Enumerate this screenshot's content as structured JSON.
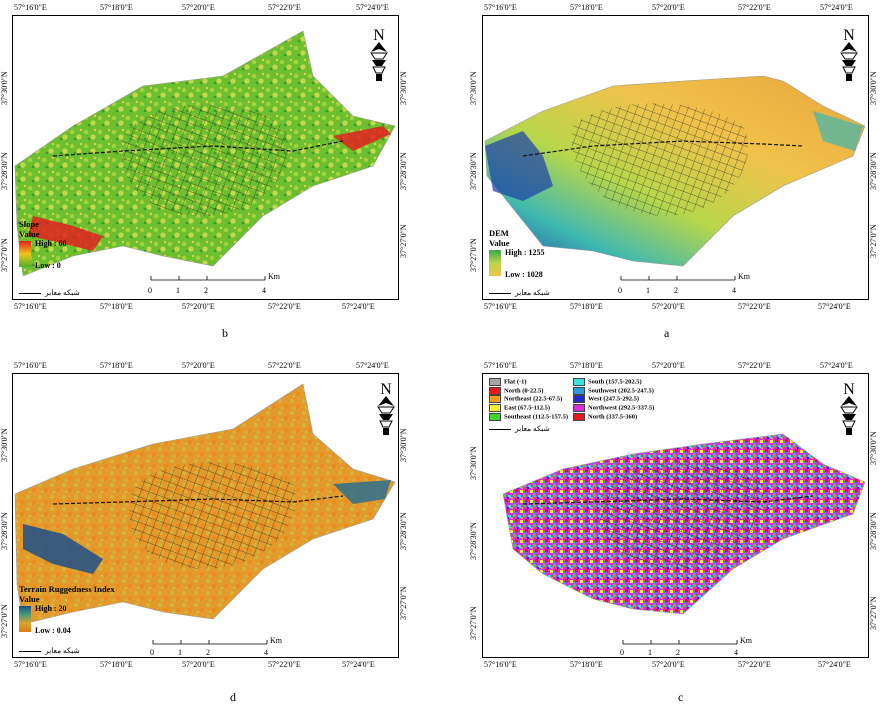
{
  "panels": {
    "b": {
      "letter": "b",
      "top_coords": [
        "57°16'0\"E",
        "57°18'0\"E",
        "57°20'0\"E",
        "57°22'0\"E",
        "57°24'0\"E"
      ],
      "bottom_coords": [
        "57°16'0\"E",
        "57°18'0\"E",
        "57°20'0\"E",
        "57°22'0\"E",
        "57°24'0\"E"
      ],
      "left_coords": [
        "37°30'0\"N",
        "37°28'30\"N",
        "37°27'0\"N"
      ],
      "right_coords": [
        "37°30'0\"N",
        "37°28'30\"N",
        "37°27'0\"N"
      ],
      "legend_title": "Slope",
      "legend_value_label": "Value",
      "legend_high": "High : 60",
      "legend_low": "Low : 0",
      "ramp_colors": [
        "#e0201e",
        "#f2c419",
        "#4fb02d"
      ],
      "scale_unit": "Km",
      "scale_ticks": [
        "0",
        "1",
        "2",
        "4"
      ],
      "road_legend": "شبکه معابر"
    },
    "a": {
      "letter": "a",
      "top_coords": [
        "57°16'0\"E",
        "57°18'0\"E",
        "57°20'0\"E",
        "57°22'0\"E",
        "57°24'0\"E"
      ],
      "bottom_coords": [
        "57°16'0\"E",
        "57°18'0\"E",
        "57°20'0\"E",
        "57°22'0\"E",
        "57°24'0\"E"
      ],
      "left_coords": [
        "37°30'0\"N",
        "37°28'30\"N",
        "37°27'0\"N"
      ],
      "right_coords": [
        "37°30'0\"N",
        "37°28'30\"N",
        "37°27'0\"N"
      ],
      "legend_title": "DEM",
      "legend_value_label": "Value",
      "legend_high": "High : 1255",
      "legend_low": "Low : 1028",
      "ramp_colors": [
        "#1c3fa6",
        "#3fb8b0",
        "#b8d64a",
        "#f0c24a"
      ],
      "scale_unit": "Km",
      "scale_ticks": [
        "0",
        "1",
        "2",
        "4"
      ],
      "road_legend": "شبکه معابر"
    },
    "d": {
      "letter": "d",
      "top_coords": [
        "57°16'0\"E",
        "57°18'0\"E",
        "57°20'0\"E",
        "57°22'0\"E",
        "57°24'0\"E"
      ],
      "bottom_coords": [
        "57°16'0\"E",
        "57°18'0\"E",
        "57°20'0\"E",
        "57°22'0\"E",
        "57°24'0\"E"
      ],
      "left_coords": [
        "37°30'0\"N",
        "37°28'30\"N",
        "37°27'0\"N"
      ],
      "right_coords": [
        "37°30'0\"N",
        "37°28'30\"N",
        "37°27'0\"N"
      ],
      "legend_title": "Terrain Ruggedness Index",
      "legend_value_label": "Value",
      "legend_high": "High : 20",
      "legend_low": "Low : 0.04",
      "ramp_colors": [
        "#1b4f8a",
        "#4a9a7a",
        "#d9a32e",
        "#e07a1a"
      ],
      "scale_unit": "Km",
      "scale_ticks": [
        "0",
        "1",
        "2",
        "4"
      ],
      "road_legend": "شبکه معابر"
    },
    "c": {
      "letter": "c",
      "top_coords": [
        "57°16'0\"E",
        "57°18'0\"E",
        "57°20'0\"E",
        "57°22'0\"E",
        "57°24'0\"E"
      ],
      "bottom_coords": [
        "57°16'0\"E",
        "57°18'0\"E",
        "57°20'0\"E",
        "57°22'0\"E",
        "57°24'0\"E"
      ],
      "left_coords": [
        "37°30'0\"N",
        "37°28'30\"N",
        "37°27'0\"N"
      ],
      "right_coords": [
        "37°30'0\"N",
        "37°28'30\"N",
        "37°27'0\"N"
      ],
      "scale_unit": "Km",
      "scale_ticks": [
        "0",
        "1",
        "2",
        "4"
      ],
      "road_legend": "شبکه معابر",
      "aspect_classes_left": [
        {
          "label": "Flat (-1)",
          "color": "#a6a6a6"
        },
        {
          "label": "North (0-22.5)",
          "color": "#e31a1c"
        },
        {
          "label": "Northeast (22.5-67.5)",
          "color": "#f39c1e"
        },
        {
          "label": "East (67.5-112.5)",
          "color": "#f5f032"
        },
        {
          "label": "Southeast (112.5-157.5)",
          "color": "#3fd52e"
        }
      ],
      "aspect_classes_right": [
        {
          "label": "South (157.5-202.5)",
          "color": "#3fe0e0"
        },
        {
          "label": "Southwest (202.5-247.5)",
          "color": "#2b9be0"
        },
        {
          "label": "West (247.5-292.5)",
          "color": "#1f2bd1"
        },
        {
          "label": "Northwest (292.5-337.5)",
          "color": "#d42fd8"
        },
        {
          "label": "North (337.5-360)",
          "color": "#e31a1c"
        }
      ]
    }
  },
  "north_label": "N"
}
